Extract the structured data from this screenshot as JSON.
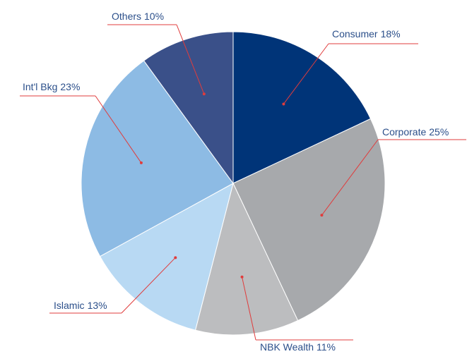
{
  "chart_data": {
    "type": "pie",
    "categories": [
      "Consumer",
      "Corporate",
      "NBK Wealth",
      "Islamic",
      "Int'l Bkg",
      "Others"
    ],
    "values": [
      18,
      25,
      11,
      13,
      23,
      10
    ],
    "value_labels": [
      "18%",
      "25%",
      "11%",
      "13%",
      "23%",
      "10%"
    ],
    "colors": [
      "#003478",
      "#a7a9ac",
      "#bcbdbf",
      "#b8d9f3",
      "#8dbbe4",
      "#3a5089"
    ]
  }
}
